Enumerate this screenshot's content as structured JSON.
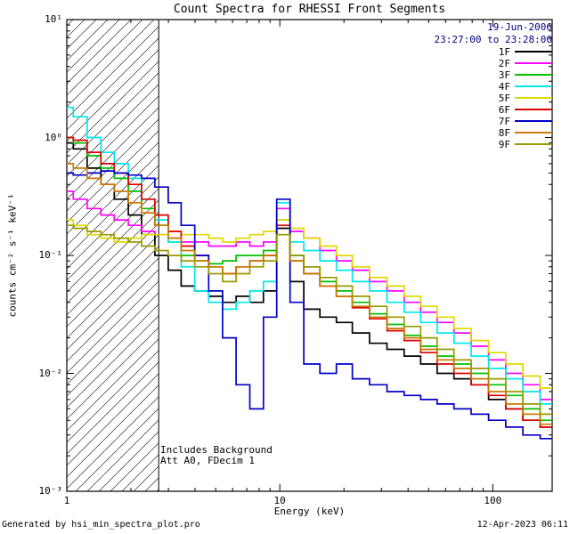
{
  "title": "Count Spectra for RHESSI Front Segments",
  "header": {
    "date": "19-Jun-2006",
    "time_range": "23:27:00 to 23:28:00",
    "text_color": "#000080"
  },
  "annotations": {
    "line1": "Includes Background",
    "line2": "Att A0, FDecim 1"
  },
  "footer": {
    "generated_by": "Generated by hsi_min_spectra_plot.pro",
    "timestamp": "12-Apr-2023 06:11"
  },
  "chart_data": {
    "type": "line",
    "scale": "log-log",
    "step": true,
    "grid": false,
    "legend_position": "top-right",
    "title": "Count Spectra for RHESSI Front Segments",
    "xlabel": "Energy (keV)",
    "ylabel": "counts cm⁻² s⁻¹ keV⁻¹",
    "xlim": [
      1,
      190
    ],
    "ylim": [
      0.001,
      10
    ],
    "x_ticks": [
      {
        "value": 1,
        "label": "1"
      },
      {
        "value": 10,
        "label": "10"
      },
      {
        "value": 100,
        "label": "100"
      }
    ],
    "y_ticks": [
      {
        "value": 10,
        "label": "10¹"
      },
      {
        "value": 1,
        "label": "10⁰"
      },
      {
        "value": 0.1,
        "label": "10⁻¹"
      },
      {
        "value": 0.01,
        "label": "10⁻²"
      },
      {
        "value": 0.001,
        "label": "10⁻³"
      }
    ],
    "hatch_region": {
      "x_min": 1,
      "x_max": 2.7
    },
    "energies_keV": [
      1.0,
      1.15,
      1.35,
      1.55,
      1.8,
      2.1,
      2.4,
      2.8,
      3.2,
      3.7,
      4.3,
      5.0,
      5.8,
      6.7,
      7.8,
      9.0,
      10.4,
      12.0,
      14,
      17,
      20,
      24,
      29,
      35,
      42,
      50,
      60,
      72,
      87,
      105,
      126,
      152,
      183
    ],
    "series": [
      {
        "name": "1F",
        "color": "#000000",
        "values": [
          0.9,
          0.8,
          0.55,
          0.4,
          0.3,
          0.22,
          0.15,
          0.1,
          0.075,
          0.055,
          0.05,
          0.045,
          0.04,
          0.045,
          0.04,
          0.05,
          0.17,
          0.06,
          0.035,
          0.03,
          0.027,
          0.022,
          0.018,
          0.016,
          0.014,
          0.012,
          0.01,
          0.009,
          0.008,
          0.006,
          0.005,
          0.004,
          0.0035
        ]
      },
      {
        "name": "2F",
        "color": "#ff00ff",
        "values": [
          0.35,
          0.3,
          0.25,
          0.22,
          0.2,
          0.18,
          0.16,
          0.15,
          0.14,
          0.13,
          0.13,
          0.12,
          0.12,
          0.13,
          0.12,
          0.13,
          0.25,
          0.16,
          0.14,
          0.11,
          0.09,
          0.075,
          0.06,
          0.05,
          0.04,
          0.033,
          0.027,
          0.022,
          0.017,
          0.013,
          0.01,
          0.008,
          0.006
        ]
      },
      {
        "name": "3F",
        "color": "#00c000",
        "values": [
          1.0,
          0.9,
          0.7,
          0.55,
          0.45,
          0.35,
          0.25,
          0.18,
          0.13,
          0.1,
          0.09,
          0.085,
          0.09,
          0.1,
          0.1,
          0.11,
          0.2,
          0.1,
          0.08,
          0.06,
          0.05,
          0.04,
          0.032,
          0.026,
          0.021,
          0.017,
          0.014,
          0.012,
          0.01,
          0.008,
          0.0065,
          0.005,
          0.004
        ]
      },
      {
        "name": "4F",
        "color": "#00e8e8",
        "values": [
          1.8,
          1.5,
          1.0,
          0.75,
          0.6,
          0.45,
          0.3,
          0.2,
          0.13,
          0.08,
          0.05,
          0.04,
          0.035,
          0.04,
          0.05,
          0.06,
          0.28,
          0.13,
          0.11,
          0.09,
          0.075,
          0.06,
          0.05,
          0.04,
          0.033,
          0.027,
          0.022,
          0.018,
          0.014,
          0.011,
          0.009,
          0.007,
          0.0055
        ]
      },
      {
        "name": "5F",
        "color": "#e0d800",
        "values": [
          0.2,
          0.18,
          0.15,
          0.14,
          0.13,
          0.14,
          0.15,
          0.15,
          0.16,
          0.15,
          0.15,
          0.14,
          0.13,
          0.14,
          0.15,
          0.16,
          0.2,
          0.17,
          0.14,
          0.12,
          0.1,
          0.08,
          0.065,
          0.055,
          0.045,
          0.037,
          0.03,
          0.024,
          0.019,
          0.015,
          0.012,
          0.0095,
          0.0075
        ]
      },
      {
        "name": "6F",
        "color": "#dd0000",
        "values": [
          1.0,
          0.95,
          0.75,
          0.6,
          0.5,
          0.4,
          0.3,
          0.22,
          0.16,
          0.12,
          0.1,
          0.08,
          0.07,
          0.08,
          0.09,
          0.1,
          0.18,
          0.09,
          0.07,
          0.055,
          0.045,
          0.036,
          0.029,
          0.023,
          0.019,
          0.015,
          0.012,
          0.01,
          0.008,
          0.0065,
          0.005,
          0.004,
          0.0035
        ]
      },
      {
        "name": "7F",
        "color": "#0000c8",
        "values": [
          0.5,
          0.48,
          0.5,
          0.52,
          0.5,
          0.48,
          0.45,
          0.38,
          0.28,
          0.18,
          0.1,
          0.05,
          0.02,
          0.008,
          0.005,
          0.03,
          0.3,
          0.04,
          0.012,
          0.01,
          0.012,
          0.009,
          0.008,
          0.007,
          0.0065,
          0.006,
          0.0055,
          0.005,
          0.0045,
          0.004,
          0.0035,
          0.003,
          0.0028
        ]
      },
      {
        "name": "8F",
        "color": "#cc7a00",
        "values": [
          0.6,
          0.55,
          0.45,
          0.4,
          0.35,
          0.28,
          0.23,
          0.18,
          0.14,
          0.11,
          0.09,
          0.08,
          0.07,
          0.08,
          0.09,
          0.1,
          0.15,
          0.09,
          0.07,
          0.055,
          0.045,
          0.037,
          0.03,
          0.024,
          0.02,
          0.016,
          0.013,
          0.011,
          0.009,
          0.007,
          0.0055,
          0.0045,
          0.0037
        ]
      },
      {
        "name": "9F",
        "color": "#9a9a00",
        "values": [
          0.18,
          0.17,
          0.16,
          0.15,
          0.14,
          0.13,
          0.12,
          0.11,
          0.1,
          0.09,
          0.08,
          0.07,
          0.06,
          0.07,
          0.08,
          0.09,
          0.15,
          0.1,
          0.08,
          0.065,
          0.055,
          0.045,
          0.037,
          0.03,
          0.025,
          0.02,
          0.016,
          0.013,
          0.011,
          0.009,
          0.007,
          0.0055,
          0.0045
        ]
      }
    ]
  }
}
